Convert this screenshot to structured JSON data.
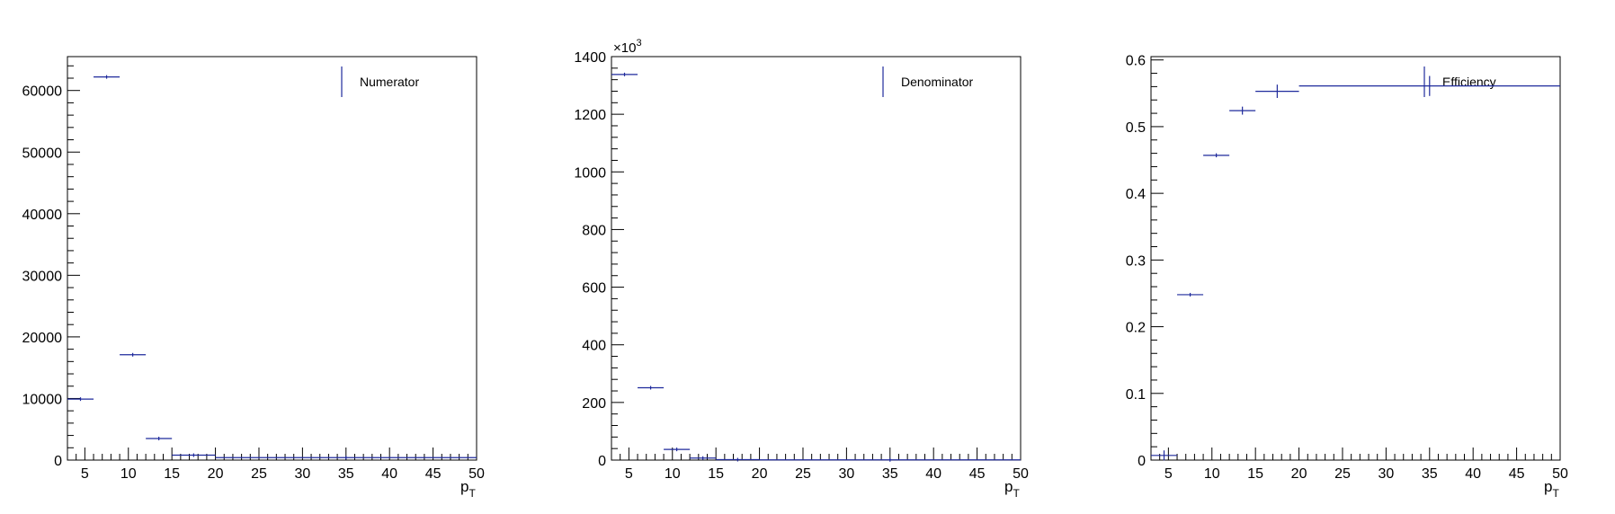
{
  "chart_data": [
    {
      "type": "scatter",
      "xlabel": "p",
      "xlabel_sub": "T",
      "xlim": [
        3,
        50
      ],
      "ylim": [
        0,
        65500
      ],
      "xticks": [
        5,
        10,
        15,
        20,
        25,
        30,
        35,
        40,
        45,
        50
      ],
      "yticks": [
        0,
        10000,
        20000,
        30000,
        40000,
        50000,
        60000
      ],
      "ytick_labels": [
        "0",
        "10000",
        "20000",
        "30000",
        "40000",
        "50000",
        "60000"
      ],
      "exponent_label": "",
      "legend": "Numerator",
      "legend_position": "top-right",
      "grid": false,
      "color": "#1f2a9c",
      "points": [
        {
          "xlo": 3,
          "xhi": 6,
          "y": 9900,
          "err": 100
        },
        {
          "xlo": 6,
          "xhi": 9,
          "y": 62200,
          "err": 250
        },
        {
          "xlo": 9,
          "xhi": 12,
          "y": 17100,
          "err": 130
        },
        {
          "xlo": 12,
          "xhi": 15,
          "y": 3500,
          "err": 60
        },
        {
          "xlo": 15,
          "xhi": 20,
          "y": 800,
          "err": 30
        },
        {
          "xlo": 20,
          "xhi": 50,
          "y": 400,
          "err": 20
        }
      ]
    },
    {
      "type": "scatter",
      "xlabel": "p",
      "xlabel_sub": "T",
      "xlim": [
        3,
        50
      ],
      "ylim": [
        0,
        1400
      ],
      "xticks": [
        5,
        10,
        15,
        20,
        25,
        30,
        35,
        40,
        45,
        50
      ],
      "yticks": [
        0,
        200,
        400,
        600,
        800,
        1000,
        1200,
        1400
      ],
      "ytick_labels": [
        "0",
        "200",
        "400",
        "600",
        "800",
        "1000",
        "1200",
        "1400"
      ],
      "exponent_label": "×10",
      "exponent_power": "3",
      "legend": "Denominator",
      "legend_position": "top-right",
      "grid": false,
      "color": "#1f2a9c",
      "points": [
        {
          "xlo": 3,
          "xhi": 6,
          "y": 1338,
          "err": 1
        },
        {
          "xlo": 6,
          "xhi": 9,
          "y": 251,
          "err": 0.5
        },
        {
          "xlo": 9,
          "xhi": 12,
          "y": 37,
          "err": 0.2
        },
        {
          "xlo": 12,
          "xhi": 15,
          "y": 7,
          "err": 0.1
        },
        {
          "xlo": 15,
          "xhi": 20,
          "y": 1.5,
          "err": 0.05
        },
        {
          "xlo": 20,
          "xhi": 50,
          "y": 0.7,
          "err": 0.03
        }
      ]
    },
    {
      "type": "scatter",
      "xlabel": "p",
      "xlabel_sub": "T",
      "xlim": [
        3,
        50
      ],
      "ylim": [
        0,
        0.605
      ],
      "xticks": [
        5,
        10,
        15,
        20,
        25,
        30,
        35,
        40,
        45,
        50
      ],
      "yticks": [
        0,
        0.1,
        0.2,
        0.3,
        0.4,
        0.5,
        0.6
      ],
      "ytick_labels": [
        "0",
        "0.1",
        "0.2",
        "0.3",
        "0.4",
        "0.5",
        "0.6"
      ],
      "exponent_label": "",
      "legend": "Efficiency",
      "legend_position": "top-right",
      "grid": false,
      "color": "#1f2a9c",
      "points": [
        {
          "xlo": 3,
          "xhi": 6,
          "y": 0.007,
          "err": 0.008
        },
        {
          "xlo": 6,
          "xhi": 9,
          "y": 0.248,
          "err": 0.001
        },
        {
          "xlo": 9,
          "xhi": 12,
          "y": 0.457,
          "err": 0.003
        },
        {
          "xlo": 12,
          "xhi": 15,
          "y": 0.524,
          "err": 0.006
        },
        {
          "xlo": 15,
          "xhi": 20,
          "y": 0.553,
          "err": 0.01
        },
        {
          "xlo": 20,
          "xhi": 50,
          "y": 0.561,
          "err": 0.015
        }
      ]
    }
  ]
}
